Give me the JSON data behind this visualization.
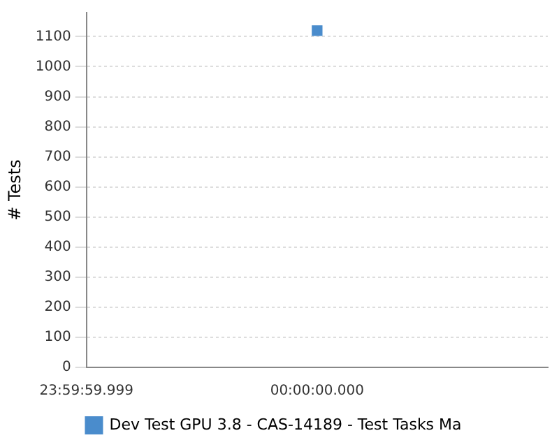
{
  "chart_data": {
    "type": "line",
    "ylabel": "# Tests",
    "categories": [
      "23:59:59.999",
      "00:00:00.000",
      null
    ],
    "series": [
      {
        "name": "Dev Test GPU 3.8 - CAS-14189 - Test Tasks Ma",
        "color": "#4a8ccc",
        "values": [
          null,
          1120,
          null
        ]
      }
    ],
    "ylim": [
      0,
      1180
    ],
    "yticks": [
      0,
      100,
      200,
      300,
      400,
      500,
      600,
      700,
      800,
      900,
      1000,
      1100
    ],
    "grid": "y",
    "legend": "bottom",
    "marker": "square"
  }
}
